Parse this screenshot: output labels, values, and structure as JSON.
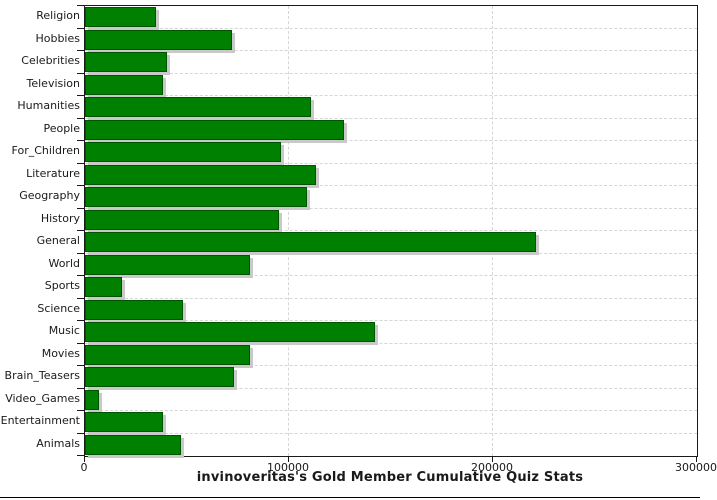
{
  "chart_data": {
    "type": "bar",
    "orientation": "horizontal",
    "title": "invinoveritas's Gold Member Cumulative Quiz Stats",
    "categories": [
      "Religion",
      "Hobbies",
      "Celebrities",
      "Television",
      "Humanities",
      "People",
      "For_Children",
      "Literature",
      "Geography",
      "History",
      "General",
      "World",
      "Sports",
      "Science",
      "Music",
      "Movies",
      "Brain_Teasers",
      "Video_Games",
      "Entertainment",
      "Animals"
    ],
    "values": [
      35000,
      72000,
      40000,
      38000,
      111000,
      127000,
      96000,
      113000,
      109000,
      95000,
      221000,
      81000,
      18000,
      48000,
      142000,
      81000,
      73000,
      7000,
      38000,
      47000
    ],
    "xlim": [
      0,
      300000
    ],
    "x_ticks": [
      0,
      100000,
      200000,
      300000
    ],
    "x_tick_labels": [
      "0",
      "100000",
      "200000",
      "300000"
    ],
    "grid": true,
    "legend": null,
    "colors": {
      "bar": "#008000",
      "bar_border": "#005500",
      "shadow": "#c9c9c9",
      "grid": "#d6d6d6",
      "axis": "#1a1a1a",
      "text": "#1a1a1a",
      "background": "#ffffff"
    }
  }
}
